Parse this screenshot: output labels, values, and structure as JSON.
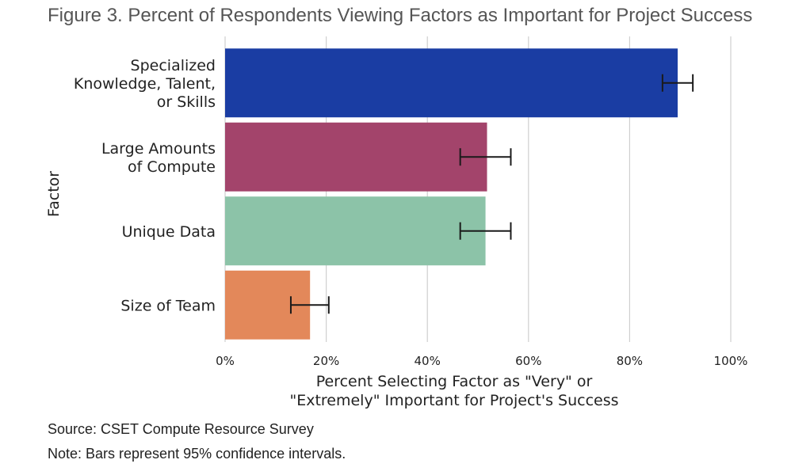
{
  "figure": {
    "title": "Figure 3. Percent of Respondents Viewing Factors as Important for Project Success",
    "source": "Source: CSET Compute Resource Survey",
    "note": "Note: Bars represent 95% confidence intervals."
  },
  "chart_data": {
    "type": "bar",
    "orientation": "horizontal",
    "categories": [
      [
        "Specialized",
        "Knowledge, Talent,",
        "or Skills"
      ],
      [
        "Large Amounts",
        "of Compute"
      ],
      [
        "Unique Data"
      ],
      [
        "Size of Team"
      ]
    ],
    "values": [
      89.5,
      51.8,
      51.5,
      16.8
    ],
    "ci_low": [
      86.5,
      46.5,
      46.5,
      13.0
    ],
    "ci_high": [
      92.5,
      56.5,
      56.5,
      20.5
    ],
    "colors": [
      "#1a3da3",
      "#a3446b",
      "#8cc3a8",
      "#e3885a"
    ],
    "xlabel": [
      "Percent Selecting Factor as \"Very\" or",
      "\"Extremely\" Important for Project's Success"
    ],
    "ylabel": "Factor",
    "xlim": [
      0,
      100
    ],
    "xticks": [
      0,
      20,
      40,
      60,
      80,
      100
    ],
    "xtick_labels": [
      "0%",
      "20%",
      "40%",
      "60%",
      "80%",
      "100%"
    ],
    "grid": "vertical"
  }
}
